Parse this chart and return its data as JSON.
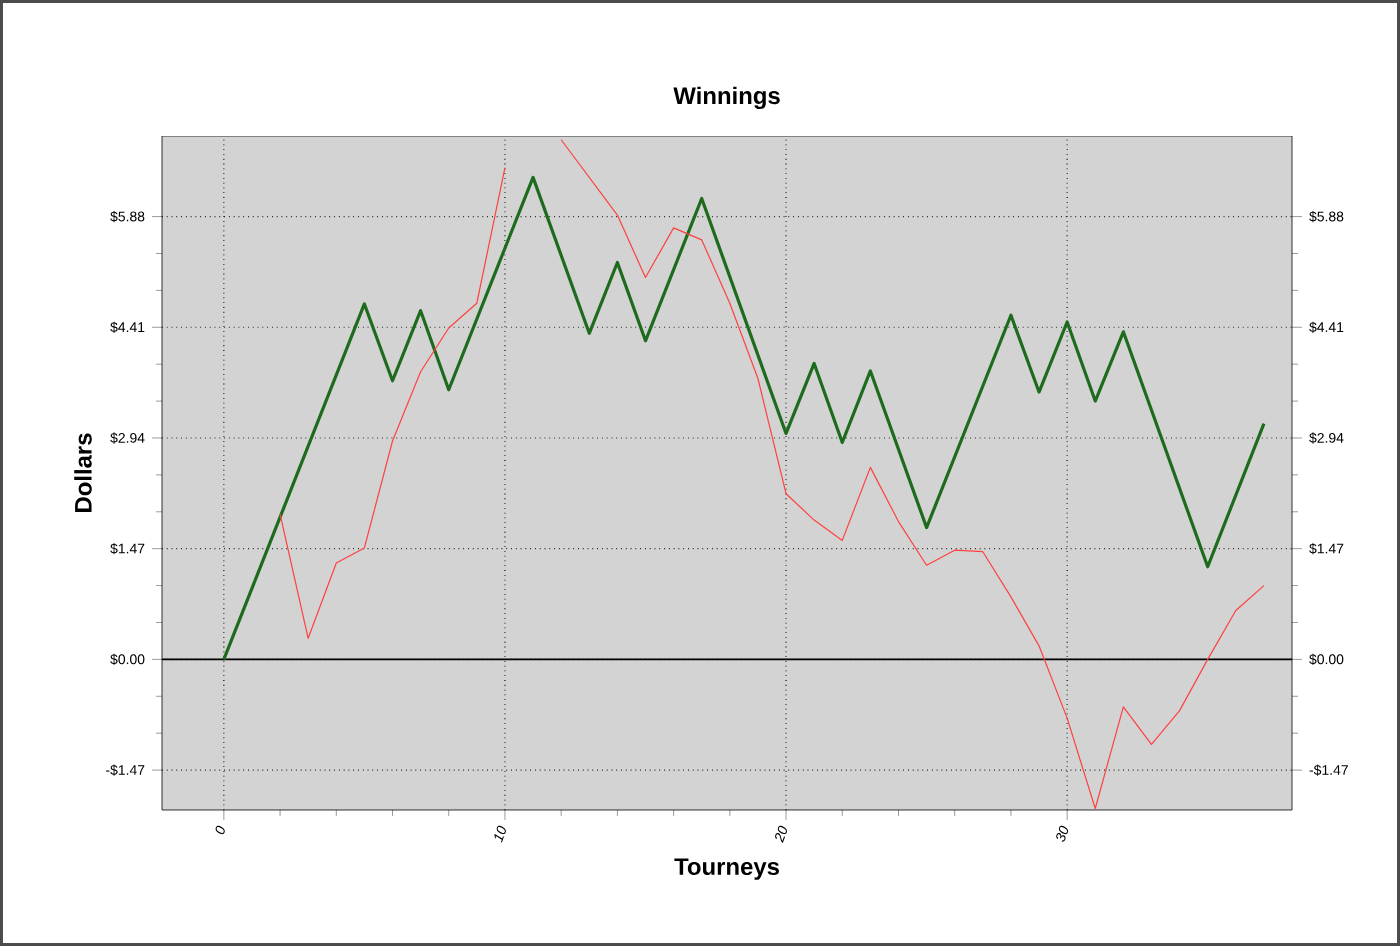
{
  "chart_data": {
    "type": "line",
    "title": "Winnings",
    "xlabel": "Tourneys",
    "ylabel": "Dollars",
    "xlim": [
      -2.2,
      38
    ],
    "xticks": [
      0,
      10,
      20,
      30
    ],
    "ylim": [
      -2.0,
      6.95
    ],
    "yticks": [
      {
        "value": -1.47,
        "label": "-$1.47"
      },
      {
        "value": 0,
        "label": "$0.00"
      },
      {
        "value": 1.47,
        "label": "$1.47"
      },
      {
        "value": 2.94,
        "label": "$2.94"
      },
      {
        "value": 4.41,
        "label": "$4.41"
      },
      {
        "value": 5.88,
        "label": "$5.88"
      }
    ],
    "y2lim": [
      -2.0,
      6.95
    ],
    "y2ticks": [
      {
        "value": -1.47,
        "label": "-$1.47"
      },
      {
        "value": 0,
        "label": "$0.00"
      },
      {
        "value": 1.47,
        "label": "$1.47"
      },
      {
        "value": 2.94,
        "label": "$2.94"
      },
      {
        "value": 4.41,
        "label": "$4.41"
      },
      {
        "value": 5.88,
        "label": "$5.88"
      }
    ],
    "grid": true,
    "ref_lines": [
      {
        "axis": "y",
        "value": 0,
        "color": "#000000"
      }
    ],
    "series": [
      {
        "color": "#1e6b1e",
        "x": [
          0,
          5,
          6,
          7,
          8,
          11,
          13,
          14,
          15,
          17,
          20,
          21,
          22,
          23,
          25,
          28,
          29,
          30,
          31,
          32,
          35,
          37
        ],
        "values": [
          0,
          4.72,
          3.7,
          4.63,
          3.58,
          6.4,
          4.33,
          5.27,
          4.23,
          6.12,
          3.0,
          3.93,
          2.88,
          3.83,
          1.75,
          4.57,
          3.55,
          4.48,
          3.43,
          4.35,
          1.23,
          3.13
        ]
      },
      {
        "color": "#ff4040",
        "x": [
          2,
          3,
          4,
          5,
          6,
          7,
          8,
          9,
          10,
          11,
          12,
          14,
          15,
          16,
          17,
          18,
          19,
          20,
          21,
          22,
          23,
          24,
          25,
          26,
          27,
          28,
          29,
          30,
          31,
          32,
          33,
          34,
          35,
          36,
          37
        ],
        "values": [
          1.93,
          0.28,
          1.28,
          1.48,
          2.9,
          3.82,
          4.4,
          4.73,
          6.53,
          null,
          6.9,
          5.9,
          5.07,
          5.73,
          5.57,
          4.73,
          3.73,
          2.2,
          1.85,
          1.58,
          2.55,
          1.83,
          1.25,
          1.45,
          1.43,
          0.83,
          0.18,
          -0.78,
          -1.98,
          -0.63,
          -1.13,
          -0.68,
          0.0,
          0.65,
          0.98
        ]
      }
    ]
  }
}
